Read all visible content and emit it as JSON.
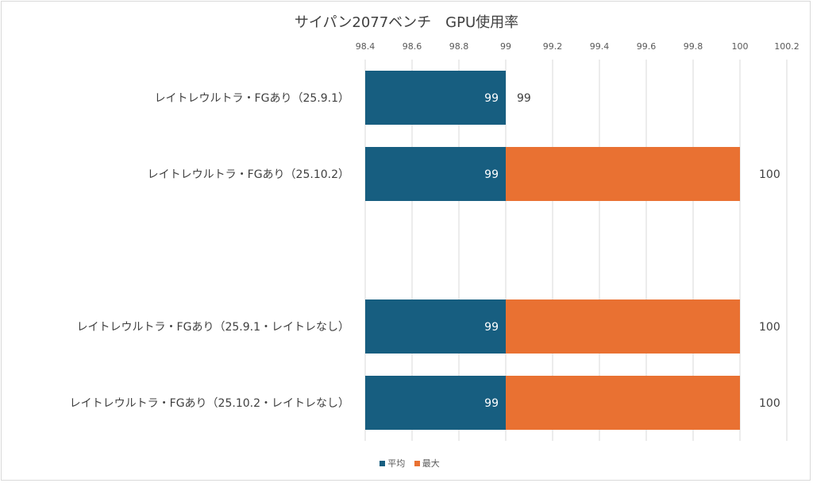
{
  "chart_data": {
    "type": "bar",
    "orientation": "horizontal",
    "title": "サイパン2077ベンチ　GPU使用率",
    "categories": [
      "レイトレウルトラ・FGあり（25.9.1）",
      "レイトレウルトラ・FGあり（25.10.2）",
      "",
      "レイトレウルトラ・FGあり（25.9.1・レイトレなし）",
      "レイトレウルトラ・FGあり（25.10.2・レイトレなし）"
    ],
    "series": [
      {
        "name": "平均",
        "color": "#175E80",
        "values": [
          99,
          99,
          null,
          99,
          99
        ]
      },
      {
        "name": "最大",
        "color": "#E97132",
        "values": [
          99,
          100,
          null,
          100,
          100
        ]
      }
    ],
    "xlim": [
      98.4,
      100.2
    ],
    "xticks": [
      "98.4",
      "98.6",
      "98.8",
      "99",
      "99.2",
      "99.4",
      "99.6",
      "99.8",
      "100",
      "100.2"
    ],
    "grid": true,
    "legend": "bottom"
  }
}
